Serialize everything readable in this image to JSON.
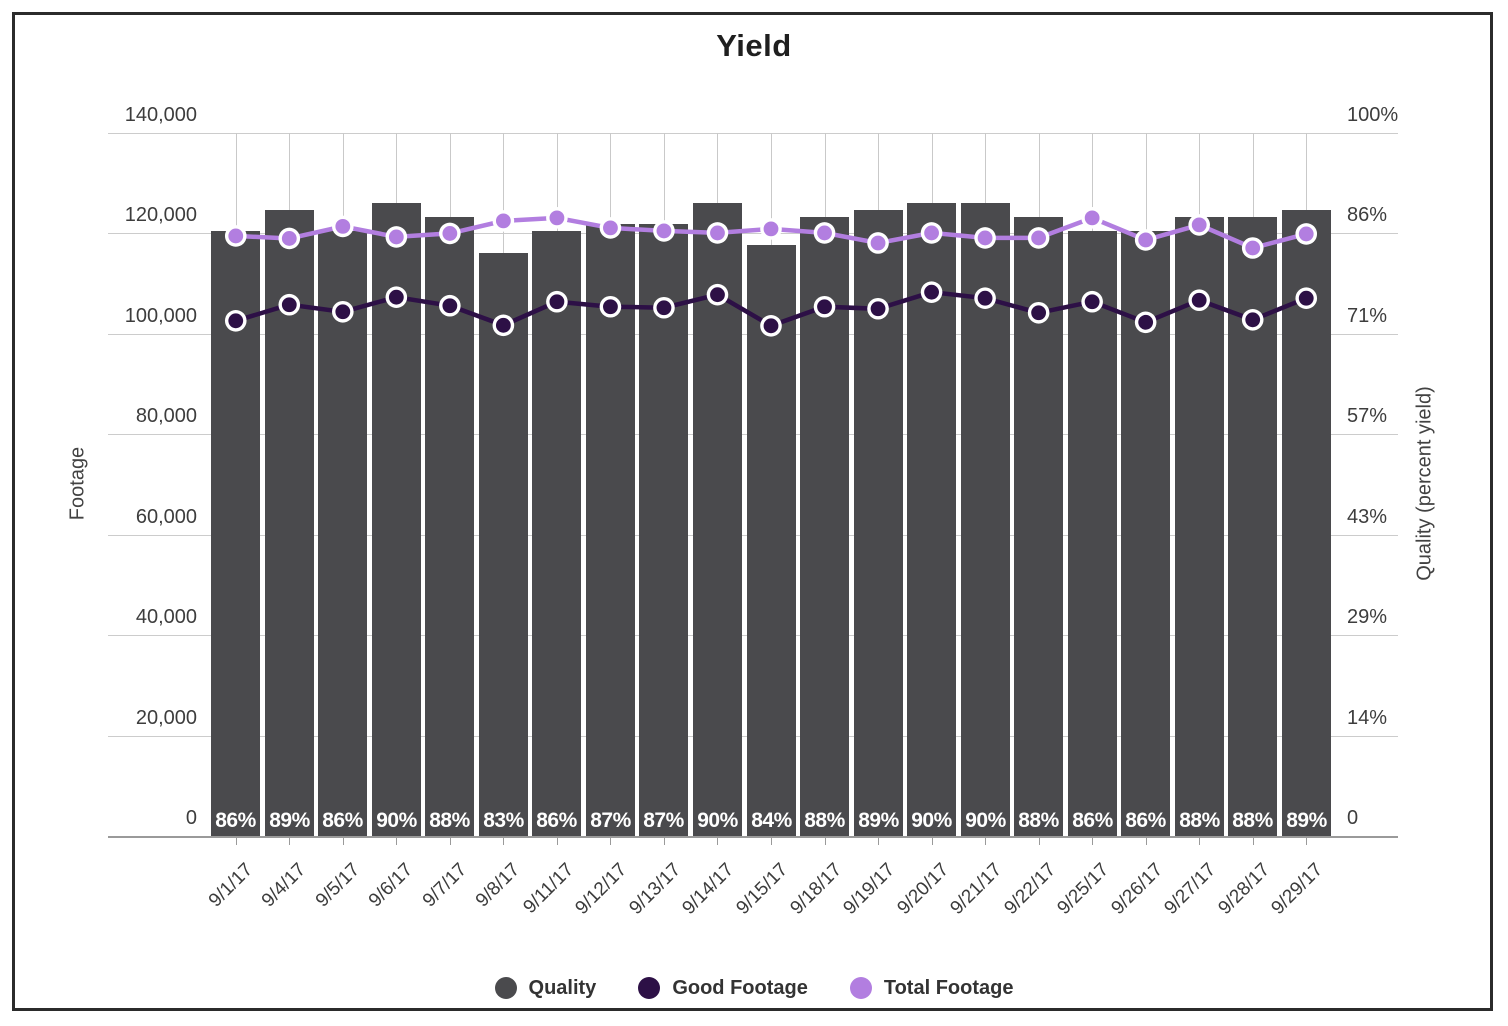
{
  "title": "Yield",
  "left_axis": {
    "title": "Footage",
    "labels_bottom_to_top": [
      "0",
      "20,000",
      "40,000",
      "60,000",
      "80,000",
      "100,000",
      "120,000",
      "140,000"
    ],
    "min": 0,
    "max": 140000
  },
  "right_axis": {
    "title": "Quality (percent yield)",
    "labels_bottom_to_top": [
      "0",
      "14%",
      "29%",
      "43%",
      "57%",
      "71%",
      "86%",
      "100%"
    ],
    "min": 0,
    "max": 100
  },
  "legend": {
    "items": [
      {
        "label": "Quality",
        "color": "#4a4a4d"
      },
      {
        "label": "Good Footage",
        "color": "#2d1046"
      },
      {
        "label": "Total Footage",
        "color": "#b27ee0"
      }
    ]
  },
  "chart_data": {
    "type": "combo-bar-line",
    "title": "Yield",
    "xlabel": "",
    "left_ylabel": "Footage",
    "right_ylabel": "Quality (percent yield)",
    "left_ylim": [
      0,
      140000
    ],
    "right_ylim": [
      0,
      100
    ],
    "grid": true,
    "legend_position": "bottom",
    "categories": [
      "9/1/17",
      "9/4/17",
      "9/5/17",
      "9/6/17",
      "9/7/17",
      "9/8/17",
      "9/11/17",
      "9/12/17",
      "9/13/17",
      "9/14/17",
      "9/15/17",
      "9/18/17",
      "9/19/17",
      "9/20/17",
      "9/21/17",
      "9/22/17",
      "9/25/17",
      "9/26/17",
      "9/27/17",
      "9/28/17",
      "9/29/17"
    ],
    "series": [
      {
        "name": "Quality",
        "chart": "bar",
        "axis": "right",
        "unit": "percent",
        "color": "#4a4a4d",
        "values": [
          86,
          89,
          86,
          90,
          88,
          83,
          86,
          87,
          87,
          90,
          84,
          88,
          89,
          90,
          90,
          88,
          86,
          86,
          88,
          88,
          89
        ],
        "bar_labels": [
          "86%",
          "89%",
          "86%",
          "90%",
          "88%",
          "83%",
          "86%",
          "87%",
          "87%",
          "90%",
          "84%",
          "88%",
          "89%",
          "90%",
          "90%",
          "88%",
          "86%",
          "86%",
          "88%",
          "88%",
          "89%"
        ]
      },
      {
        "name": "Good Footage",
        "chart": "line",
        "axis": "left",
        "unit": "footage",
        "color": "#2d1046",
        "values": [
          102600,
          105800,
          104400,
          107300,
          105600,
          101700,
          106400,
          105400,
          105200,
          107800,
          101600,
          105400,
          105000,
          108300,
          107100,
          104200,
          106400,
          102300,
          106700,
          102800,
          107100
        ]
      },
      {
        "name": "Total Footage",
        "chart": "line",
        "axis": "left",
        "unit": "footage",
        "color": "#b27ee0",
        "values": [
          119500,
          119000,
          121400,
          119300,
          120000,
          122500,
          123100,
          121100,
          120500,
          120100,
          120900,
          120100,
          118100,
          120100,
          119100,
          119100,
          123100,
          118700,
          121700,
          117100,
          119900
        ]
      }
    ]
  }
}
